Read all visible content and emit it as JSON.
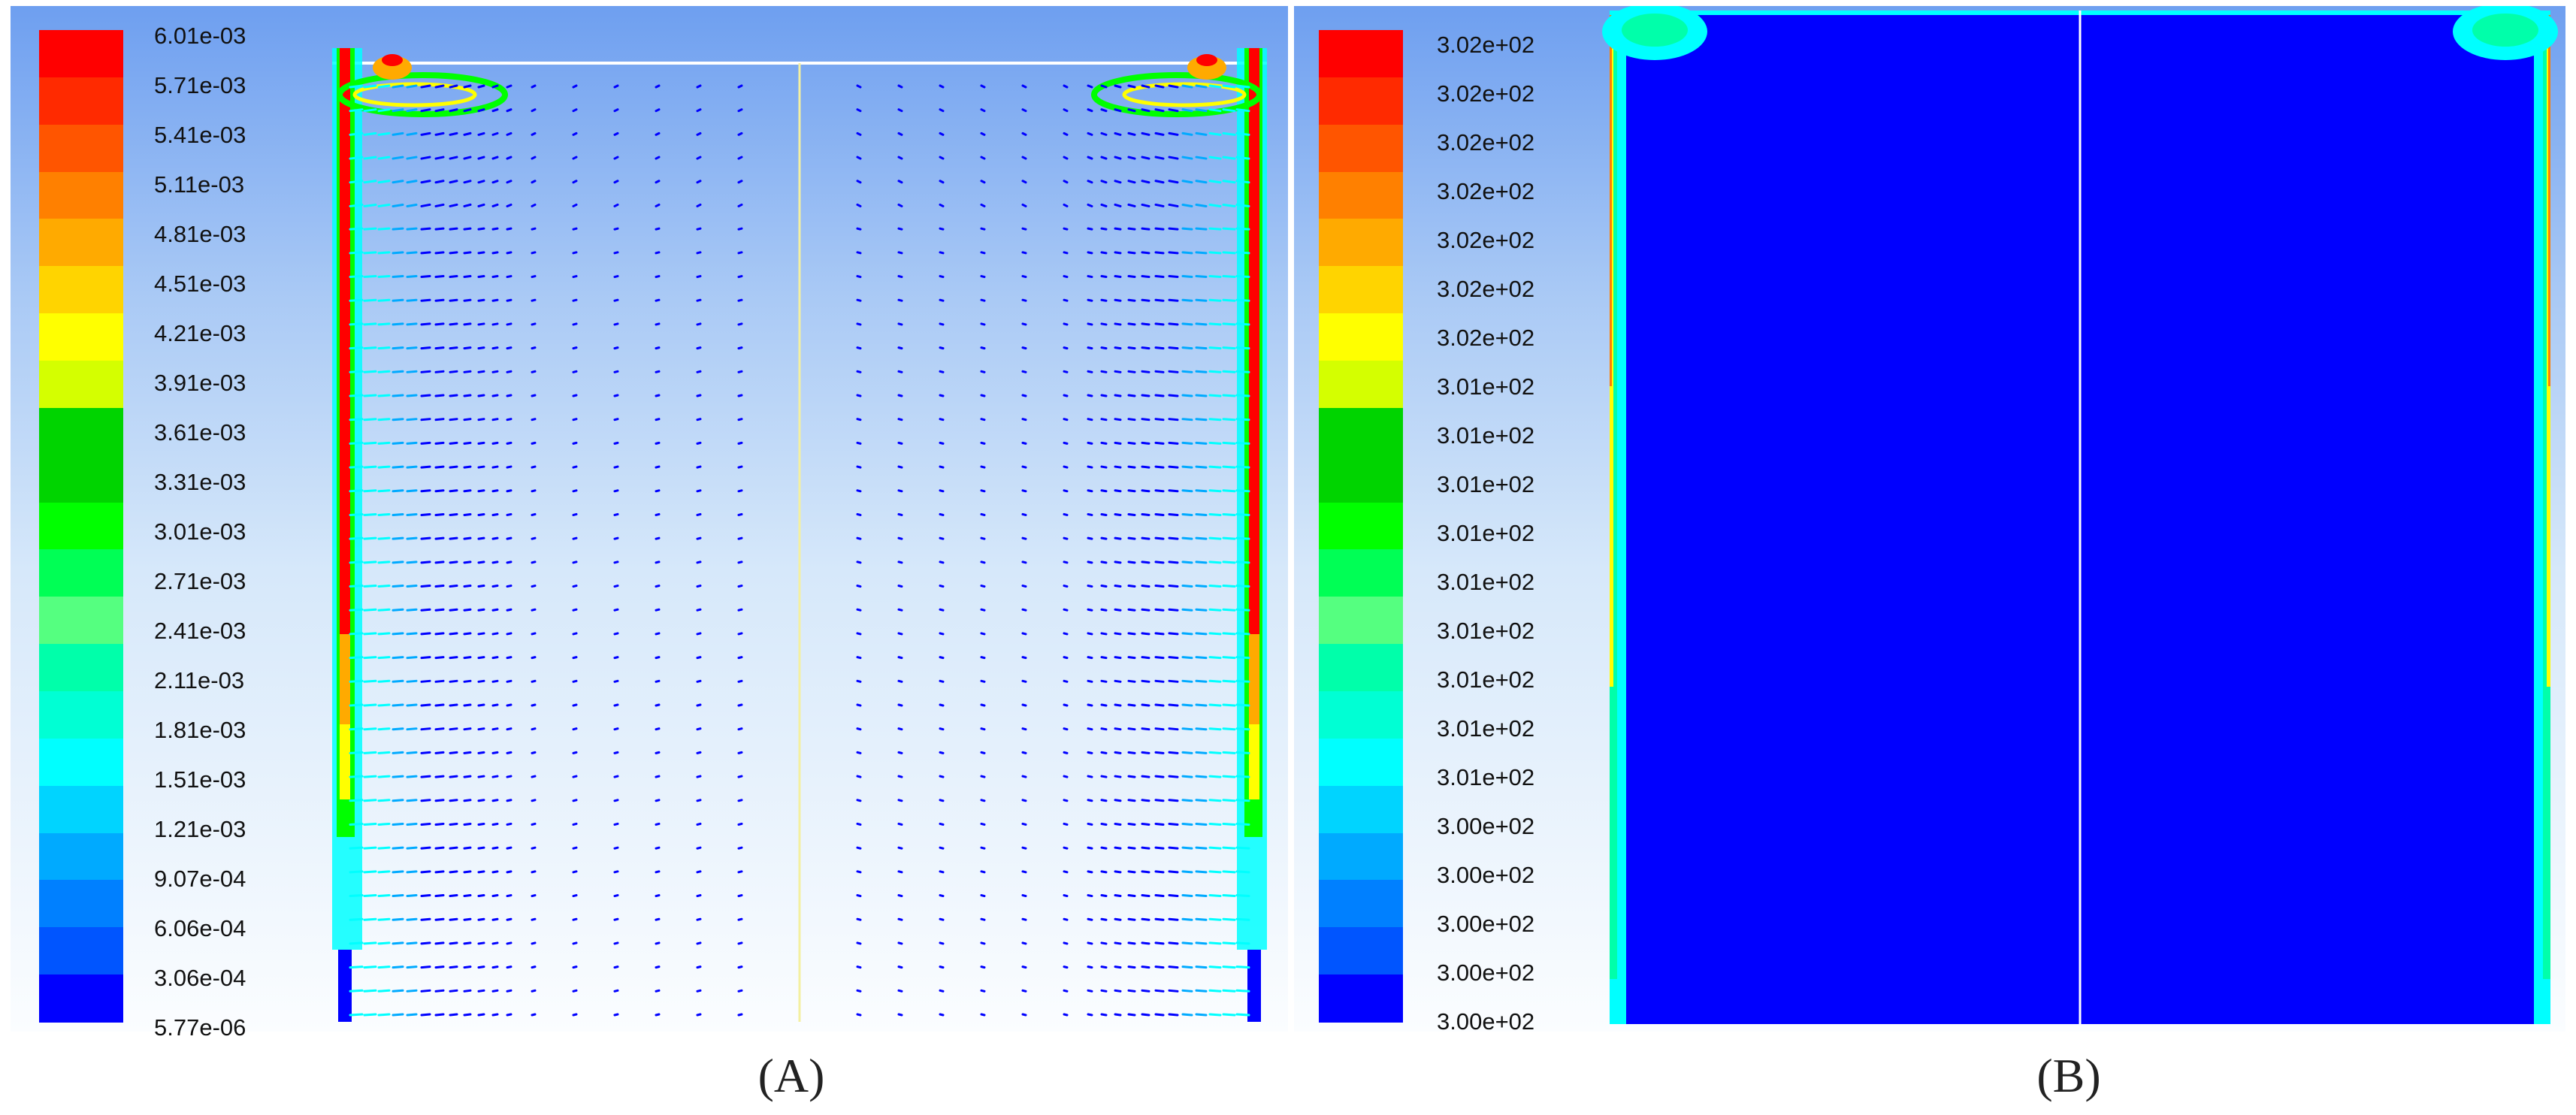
{
  "figure": {
    "panel_a": {
      "caption": "(A)",
      "legend": {
        "labels": [
          "6.01e-03",
          "5.71e-03",
          "5.41e-03",
          "5.11e-03",
          "4.81e-03",
          "4.51e-03",
          "4.21e-03",
          "3.91e-03",
          "3.61e-03",
          "3.31e-03",
          "3.01e-03",
          "2.71e-03",
          "2.41e-03",
          "2.11e-03",
          "1.81e-03",
          "1.51e-03",
          "1.21e-03",
          "9.07e-04",
          "6.06e-04",
          "3.06e-04",
          "5.77e-06"
        ],
        "colors": [
          "#ff0000",
          "#ff2a00",
          "#ff5500",
          "#ff8000",
          "#ffaa00",
          "#ffd400",
          "#ffff00",
          "#d4ff00",
          "#00d400",
          "#00d400",
          "#00ff00",
          "#00ff55",
          "#55ff80",
          "#00ffaa",
          "#00ffd4",
          "#00ffff",
          "#00d4ff",
          "#00aaff",
          "#0080ff",
          "#0055ff",
          "#0000ff"
        ]
      }
    },
    "panel_b": {
      "caption": "(B)",
      "legend": {
        "labels": [
          "3.02e+02",
          "3.02e+02",
          "3.02e+02",
          "3.02e+02",
          "3.02e+02",
          "3.02e+02",
          "3.02e+02",
          "3.01e+02",
          "3.01e+02",
          "3.01e+02",
          "3.01e+02",
          "3.01e+02",
          "3.01e+02",
          "3.01e+02",
          "3.01e+02",
          "3.01e+02",
          "3.00e+02",
          "3.00e+02",
          "3.00e+02",
          "3.00e+02",
          "3.00e+02"
        ],
        "colors": [
          "#ff0000",
          "#ff2a00",
          "#ff5500",
          "#ff8000",
          "#ffaa00",
          "#ffd400",
          "#ffff00",
          "#d4ff00",
          "#00d400",
          "#00d400",
          "#00ff00",
          "#00ff55",
          "#55ff80",
          "#00ffaa",
          "#00ffd4",
          "#00ffff",
          "#00d4ff",
          "#00aaff",
          "#0080ff",
          "#0055ff",
          "#0000ff"
        ]
      }
    }
  }
}
